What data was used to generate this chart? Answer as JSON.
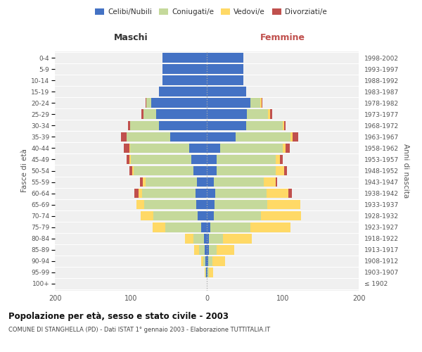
{
  "age_groups": [
    "100+",
    "95-99",
    "90-94",
    "85-89",
    "80-84",
    "75-79",
    "70-74",
    "65-69",
    "60-64",
    "55-59",
    "50-54",
    "45-49",
    "40-44",
    "35-39",
    "30-34",
    "25-29",
    "20-24",
    "15-19",
    "10-14",
    "5-9",
    "0-4"
  ],
  "birth_years": [
    "≤ 1902",
    "1903-1907",
    "1908-1912",
    "1913-1917",
    "1918-1922",
    "1923-1927",
    "1928-1932",
    "1933-1937",
    "1938-1942",
    "1943-1947",
    "1948-1952",
    "1953-1957",
    "1958-1962",
    "1963-1967",
    "1968-1972",
    "1973-1977",
    "1978-1982",
    "1983-1987",
    "1988-1992",
    "1993-1997",
    "1998-2002"
  ],
  "maschi_celibi": [
    0,
    1,
    2,
    3,
    4,
    7,
    12,
    14,
    15,
    13,
    18,
    20,
    23,
    48,
    63,
    67,
    73,
    63,
    58,
    58,
    58
  ],
  "maschi_coniugati": [
    0,
    1,
    3,
    7,
    14,
    48,
    58,
    68,
    70,
    68,
    78,
    80,
    78,
    58,
    38,
    16,
    7,
    0,
    0,
    0,
    0
  ],
  "maschi_vedovi": [
    0,
    1,
    2,
    7,
    11,
    16,
    17,
    11,
    5,
    3,
    2,
    2,
    1,
    0,
    0,
    0,
    0,
    0,
    0,
    0,
    0
  ],
  "maschi_divorziati": [
    0,
    0,
    0,
    0,
    0,
    0,
    0,
    0,
    5,
    4,
    4,
    4,
    7,
    7,
    3,
    3,
    1,
    0,
    0,
    0,
    0
  ],
  "femmine_nubili": [
    0,
    1,
    2,
    3,
    3,
    5,
    9,
    10,
    11,
    9,
    13,
    13,
    18,
    38,
    52,
    53,
    57,
    52,
    48,
    48,
    48
  ],
  "femmine_coniugate": [
    0,
    2,
    5,
    10,
    18,
    52,
    62,
    70,
    68,
    66,
    78,
    78,
    82,
    72,
    48,
    28,
    13,
    0,
    0,
    0,
    0
  ],
  "femmine_vedove": [
    0,
    5,
    17,
    23,
    38,
    53,
    53,
    43,
    28,
    16,
    11,
    5,
    4,
    3,
    2,
    2,
    2,
    0,
    0,
    0,
    0
  ],
  "femmine_divorziate": [
    0,
    0,
    0,
    0,
    0,
    0,
    0,
    0,
    5,
    2,
    4,
    4,
    5,
    7,
    2,
    3,
    1,
    0,
    0,
    0,
    0
  ],
  "colors": {
    "celibi_nubili": "#4472C4",
    "coniugati": "#C5D99B",
    "vedovi": "#FFD966",
    "divorziati": "#C0504D"
  },
  "title": "Popolazione per età, sesso e stato civile - 2003",
  "subtitle": "COMUNE DI STANGHELLA (PD) - Dati ISTAT 1° gennaio 2003 - Elaborazione TUTTITALIA.IT",
  "label_maschi": "Maschi",
  "label_femmine": "Femmine",
  "ylabel_left": "Fasce di età",
  "ylabel_right": "Anni di nascita",
  "xlim": 200,
  "background_color": "#f0f0f0",
  "bar_height": 0.85
}
